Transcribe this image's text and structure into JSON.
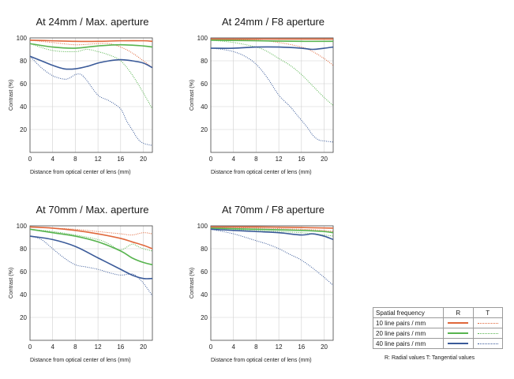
{
  "colors": {
    "10": "#e0673a",
    "20": "#58b44f",
    "40": "#3a5a99"
  },
  "chart_data": [
    {
      "type": "line",
      "title": "At 24mm / Max. aperture",
      "xlabel": "Distance from optical center of lens (mm)",
      "ylabel": "Contrast (%)",
      "xlim": [
        0,
        21.6
      ],
      "ylim": [
        0,
        100
      ],
      "xticks": [
        "0",
        "4",
        "8",
        "12",
        "16",
        "20"
      ],
      "yticks": [
        "20",
        "40",
        "60",
        "80",
        "100"
      ],
      "series": [
        {
          "freq": "10",
          "kind": "R",
          "points": [
            [
              0,
              98
            ],
            [
              4,
              97.5
            ],
            [
              8,
              97
            ],
            [
              12,
              97
            ],
            [
              16,
              97.5
            ],
            [
              20,
              97.5
            ],
            [
              21.6,
              97
            ]
          ]
        },
        {
          "freq": "10",
          "kind": "T",
          "points": [
            [
              0,
              98
            ],
            [
              4,
              96
            ],
            [
              8,
              94
            ],
            [
              12,
              95
            ],
            [
              14,
              95
            ],
            [
              16,
              92
            ],
            [
              18,
              87
            ],
            [
              20,
              80
            ],
            [
              21.6,
              74
            ]
          ]
        },
        {
          "freq": "20",
          "kind": "R",
          "points": [
            [
              0,
              95
            ],
            [
              4,
              92
            ],
            [
              8,
              91
            ],
            [
              12,
              93
            ],
            [
              16,
              94
            ],
            [
              20,
              93
            ],
            [
              21.6,
              92
            ]
          ]
        },
        {
          "freq": "20",
          "kind": "T",
          "points": [
            [
              0,
              95
            ],
            [
              4,
              89
            ],
            [
              8,
              88
            ],
            [
              10,
              90
            ],
            [
              12,
              88
            ],
            [
              14,
              85
            ],
            [
              16,
              80
            ],
            [
              18,
              68
            ],
            [
              20,
              52
            ],
            [
              21.6,
              38
            ]
          ]
        },
        {
          "freq": "40",
          "kind": "R",
          "points": [
            [
              0,
              84
            ],
            [
              2,
              80
            ],
            [
              4,
              76
            ],
            [
              6,
              73
            ],
            [
              8,
              73
            ],
            [
              10,
              75
            ],
            [
              12,
              78
            ],
            [
              14,
              80
            ],
            [
              16,
              81
            ],
            [
              18,
              80
            ],
            [
              20,
              78
            ],
            [
              21.6,
              74
            ]
          ]
        },
        {
          "freq": "40",
          "kind": "T",
          "points": [
            [
              0,
              84
            ],
            [
              2,
              74
            ],
            [
              4,
              67
            ],
            [
              6,
              64
            ],
            [
              7,
              65
            ],
            [
              8,
              68
            ],
            [
              9,
              68
            ],
            [
              10,
              63
            ],
            [
              12,
              50
            ],
            [
              14,
              45
            ],
            [
              16,
              38
            ],
            [
              17,
              28
            ],
            [
              18,
              20
            ],
            [
              19,
              12
            ],
            [
              20,
              8
            ],
            [
              21.6,
              6
            ]
          ]
        }
      ]
    },
    {
      "type": "line",
      "title": "At 24mm / F8 aperture",
      "xlabel": "Distance from optical center of lens (mm)",
      "ylabel": "Contrast (%)",
      "xlim": [
        0,
        21.6
      ],
      "ylim": [
        0,
        100
      ],
      "xticks": [
        "0",
        "4",
        "8",
        "12",
        "16",
        "20"
      ],
      "yticks": [
        "20",
        "40",
        "60",
        "80",
        "100"
      ],
      "series": [
        {
          "freq": "10",
          "kind": "R",
          "points": [
            [
              0,
              99
            ],
            [
              8,
              99
            ],
            [
              16,
              99
            ],
            [
              21.6,
              99
            ]
          ]
        },
        {
          "freq": "10",
          "kind": "T",
          "points": [
            [
              0,
              99
            ],
            [
              8,
              98
            ],
            [
              12,
              96
            ],
            [
              16,
              92
            ],
            [
              18,
              88
            ],
            [
              20,
              82
            ],
            [
              21.6,
              76
            ]
          ]
        },
        {
          "freq": "20",
          "kind": "R",
          "points": [
            [
              0,
              98
            ],
            [
              8,
              97.5
            ],
            [
              16,
              97
            ],
            [
              21.6,
              97
            ]
          ]
        },
        {
          "freq": "20",
          "kind": "T",
          "points": [
            [
              0,
              98
            ],
            [
              4,
              96
            ],
            [
              8,
              92
            ],
            [
              10,
              88
            ],
            [
              12,
              82
            ],
            [
              14,
              76
            ],
            [
              16,
              68
            ],
            [
              18,
              58
            ],
            [
              20,
              48
            ],
            [
              21.6,
              41
            ]
          ]
        },
        {
          "freq": "40",
          "kind": "R",
          "points": [
            [
              0,
              91
            ],
            [
              4,
              91
            ],
            [
              8,
              92
            ],
            [
              12,
              92
            ],
            [
              16,
              91
            ],
            [
              18,
              90
            ],
            [
              20,
              91
            ],
            [
              21.6,
              92
            ]
          ]
        },
        {
          "freq": "40",
          "kind": "T",
          "points": [
            [
              0,
              91
            ],
            [
              2,
              90
            ],
            [
              4,
              88
            ],
            [
              6,
              84
            ],
            [
              8,
              77
            ],
            [
              10,
              65
            ],
            [
              12,
              50
            ],
            [
              14,
              40
            ],
            [
              15,
              34
            ],
            [
              16,
              28
            ],
            [
              17,
              22
            ],
            [
              18,
              15
            ],
            [
              19,
              11
            ],
            [
              20,
              10
            ],
            [
              21.6,
              9
            ]
          ]
        }
      ]
    },
    {
      "type": "line",
      "title": "At 70mm / Max. aperture",
      "xlabel": "Distance from optical center of lens (mm)",
      "ylabel": "Contrast (%)",
      "xlim": [
        0,
        21.6
      ],
      "ylim": [
        0,
        100
      ],
      "xticks": [
        "0",
        "4",
        "8",
        "12",
        "16",
        "20"
      ],
      "yticks": [
        "20",
        "40",
        "60",
        "80",
        "100"
      ],
      "series": [
        {
          "freq": "10",
          "kind": "R",
          "points": [
            [
              0,
              99
            ],
            [
              4,
              98
            ],
            [
              8,
              96
            ],
            [
              12,
              93
            ],
            [
              16,
              89
            ],
            [
              18,
              86
            ],
            [
              20,
              83
            ],
            [
              21.6,
              80
            ]
          ]
        },
        {
          "freq": "10",
          "kind": "T",
          "points": [
            [
              0,
              99
            ],
            [
              4,
              98
            ],
            [
              8,
              97
            ],
            [
              12,
              95
            ],
            [
              16,
              93
            ],
            [
              18,
              92
            ],
            [
              20,
              94
            ],
            [
              21.6,
              93
            ]
          ]
        },
        {
          "freq": "20",
          "kind": "R",
          "points": [
            [
              0,
              97
            ],
            [
              4,
              94
            ],
            [
              8,
              91
            ],
            [
              12,
              86
            ],
            [
              16,
              78
            ],
            [
              18,
              72
            ],
            [
              20,
              68
            ],
            [
              21.6,
              66
            ]
          ]
        },
        {
          "freq": "20",
          "kind": "T",
          "points": [
            [
              0,
              97
            ],
            [
              4,
              95
            ],
            [
              8,
              92
            ],
            [
              12,
              88
            ],
            [
              14,
              84
            ],
            [
              16,
              79
            ],
            [
              18,
              84
            ],
            [
              19,
              82
            ],
            [
              20,
              80
            ],
            [
              21.6,
              78
            ]
          ]
        },
        {
          "freq": "40",
          "kind": "R",
          "points": [
            [
              0,
              91
            ],
            [
              4,
              88
            ],
            [
              8,
              82
            ],
            [
              12,
              72
            ],
            [
              16,
              62
            ],
            [
              18,
              57
            ],
            [
              20,
              54
            ],
            [
              21.6,
              54
            ]
          ]
        },
        {
          "freq": "40",
          "kind": "T",
          "points": [
            [
              0,
              91
            ],
            [
              2,
              88
            ],
            [
              4,
              80
            ],
            [
              6,
              72
            ],
            [
              8,
              66
            ],
            [
              10,
              64
            ],
            [
              12,
              62
            ],
            [
              14,
              59
            ],
            [
              16,
              57
            ],
            [
              18,
              58
            ],
            [
              19,
              55
            ],
            [
              20,
              50
            ],
            [
              21.6,
              39
            ]
          ]
        }
      ]
    },
    {
      "type": "line",
      "title": "At 70mm / F8 aperture",
      "xlabel": "Distance from optical center of lens (mm)",
      "ylabel": "Contrast (%)",
      "xlim": [
        0,
        21.6
      ],
      "ylim": [
        0,
        100
      ],
      "xticks": [
        "0",
        "4",
        "8",
        "12",
        "16",
        "20"
      ],
      "yticks": [
        "20",
        "40",
        "60",
        "80",
        "100"
      ],
      "series": [
        {
          "freq": "10",
          "kind": "R",
          "points": [
            [
              0,
              99
            ],
            [
              8,
              99
            ],
            [
              16,
              98.5
            ],
            [
              21.6,
              98
            ]
          ]
        },
        {
          "freq": "10",
          "kind": "T",
          "points": [
            [
              0,
              99
            ],
            [
              8,
              98
            ],
            [
              16,
              97
            ],
            [
              20,
              96
            ],
            [
              21.6,
              95
            ]
          ]
        },
        {
          "freq": "20",
          "kind": "R",
          "points": [
            [
              0,
              98
            ],
            [
              8,
              97
            ],
            [
              16,
              96
            ],
            [
              20,
              95
            ],
            [
              21.6,
              94
            ]
          ]
        },
        {
          "freq": "20",
          "kind": "T",
          "points": [
            [
              0,
              98
            ],
            [
              8,
              96
            ],
            [
              16,
              94
            ],
            [
              20,
              92
            ],
            [
              21.6,
              91
            ]
          ]
        },
        {
          "freq": "40",
          "kind": "R",
          "points": [
            [
              0,
              97
            ],
            [
              4,
              96
            ],
            [
              8,
              95
            ],
            [
              12,
              94
            ],
            [
              16,
              92
            ],
            [
              18,
              93
            ],
            [
              20,
              91
            ],
            [
              21.6,
              88
            ]
          ]
        },
        {
          "freq": "40",
          "kind": "T",
          "points": [
            [
              0,
              97
            ],
            [
              4,
              93
            ],
            [
              8,
              87
            ],
            [
              10,
              84
            ],
            [
              12,
              80
            ],
            [
              14,
              75
            ],
            [
              16,
              70
            ],
            [
              18,
              63
            ],
            [
              20,
              55
            ],
            [
              21.6,
              48
            ]
          ]
        }
      ]
    }
  ],
  "legend": {
    "header": "Spatial frequency",
    "col_r": "R",
    "col_t": "T",
    "rows": [
      {
        "label": "10 line pairs / mm",
        "freq": "10"
      },
      {
        "label": "20 line pairs / mm",
        "freq": "20"
      },
      {
        "label": "40 line pairs / mm",
        "freq": "40"
      }
    ],
    "footnote": "R: Radial values  T: Tangential values"
  }
}
